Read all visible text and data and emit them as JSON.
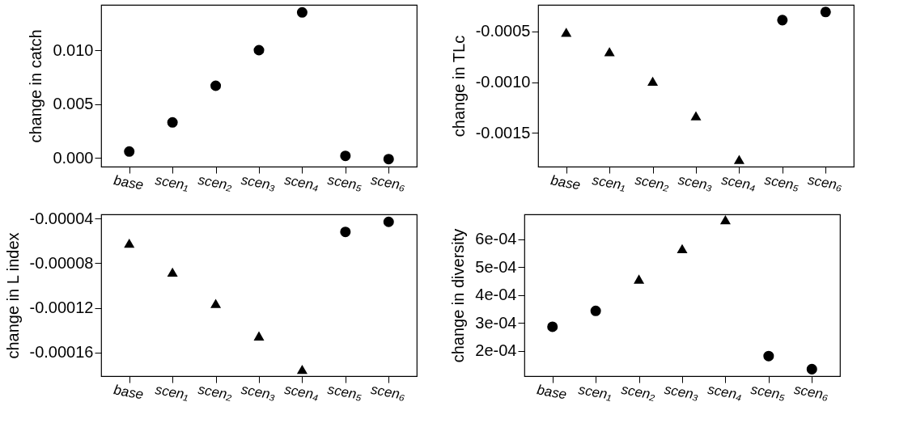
{
  "chart_data": [
    {
      "type": "scatter",
      "ylabel": "change in catch",
      "categories": [
        "base",
        "scen₁",
        "scen₂",
        "scen₃",
        "scen₄",
        "scen₅",
        "scen₆"
      ],
      "ylim": [
        -0.0008,
        0.0142
      ],
      "yticks": [
        {
          "value": 0,
          "label": "0.000"
        },
        {
          "value": 0.005,
          "label": "0.005"
        },
        {
          "value": 0.01,
          "label": "0.010"
        }
      ],
      "grid": false,
      "series": [
        {
          "color": "#000000",
          "marker": "circle",
          "values": [
            0.0006,
            0.0033,
            0.0067,
            0.01,
            0.0135,
            0.0002,
            -0.0001
          ]
        }
      ]
    },
    {
      "type": "scatter",
      "ylabel": "change in TLc",
      "categories": [
        "base",
        "scen₁",
        "scen₂",
        "scen₃",
        "scen₄",
        "scen₅",
        "scen₆"
      ],
      "ylim": [
        -0.00183,
        -0.00024
      ],
      "yticks": [
        {
          "value": -0.0005,
          "label": "-0.0005"
        },
        {
          "value": -0.001,
          "label": "-0.0010"
        },
        {
          "value": -0.0015,
          "label": "-0.0015"
        }
      ],
      "grid": false,
      "series": [
        {
          "color": "#000000",
          "marker": "triangle",
          "values": [
            -0.00051,
            -0.0007,
            -0.00099,
            -0.00133,
            -0.00176,
            null,
            null
          ]
        },
        {
          "color": "#000000",
          "marker": "circle",
          "values": [
            null,
            null,
            null,
            null,
            null,
            -0.00039,
            -0.00031
          ]
        }
      ]
    },
    {
      "type": "scatter",
      "ylabel": "change in L index",
      "categories": [
        "base",
        "scen₁",
        "scen₂",
        "scen₃",
        "scen₄",
        "scen₅",
        "scen₆"
      ],
      "ylim": [
        -0.000181,
        -3.63e-05
      ],
      "yticks": [
        {
          "value": -4e-05,
          "label": "-0.00004"
        },
        {
          "value": -8e-05,
          "label": "-0.00008"
        },
        {
          "value": -0.00012,
          "label": "-0.00012"
        },
        {
          "value": -0.00016,
          "label": "-0.00016"
        }
      ],
      "grid": false,
      "series": [
        {
          "color": "#000000",
          "marker": "triangle",
          "values": [
            -6.2e-05,
            -8.8e-05,
            -0.000116,
            -0.000145,
            -0.000175,
            null,
            null
          ]
        },
        {
          "color": "#000000",
          "marker": "circle",
          "values": [
            null,
            null,
            null,
            null,
            null,
            -5.2e-05,
            -4.3e-05
          ]
        }
      ]
    },
    {
      "type": "scatter",
      "ylabel": "change in diversity",
      "categories": [
        "base",
        "scen₁",
        "scen₂",
        "scen₃",
        "scen₄",
        "scen₅",
        "scen₆"
      ],
      "ylim": [
        0.000109,
        0.000689
      ],
      "yticks": [
        {
          "value": 0.0002,
          "label": "2e-04"
        },
        {
          "value": 0.0003,
          "label": "3e-04"
        },
        {
          "value": 0.0004,
          "label": "4e-04"
        },
        {
          "value": 0.0005,
          "label": "5e-04"
        },
        {
          "value": 0.0006,
          "label": "6e-04"
        }
      ],
      "grid": false,
      "series": [
        {
          "color": "#000000",
          "marker": "circle",
          "values": [
            0.000286,
            0.000343,
            null,
            null,
            null,
            0.000181,
            0.000134
          ]
        },
        {
          "color": "#000000",
          "marker": "triangle",
          "values": [
            null,
            null,
            0.000457,
            0.000566,
            0.00067,
            null,
            null
          ]
        }
      ]
    }
  ]
}
